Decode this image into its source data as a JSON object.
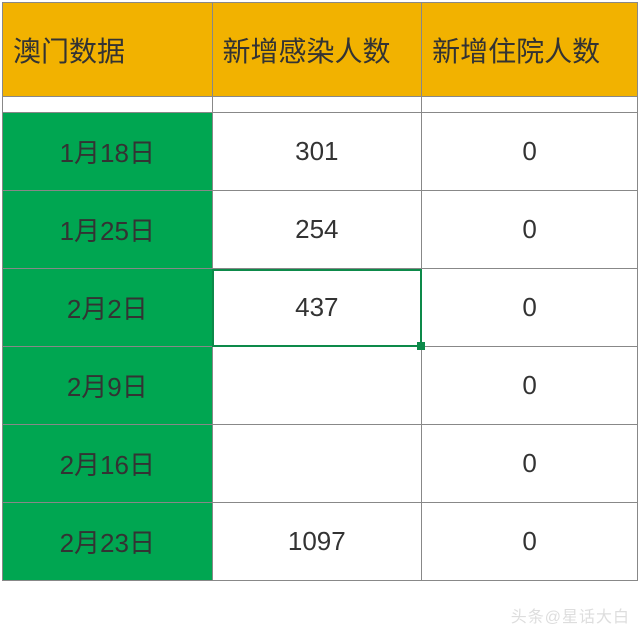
{
  "table": {
    "columns": [
      "澳门数据",
      "新增感染人数",
      "新增住院人数"
    ],
    "header_bg": "#f2b200",
    "date_bg": "#00a651",
    "border_color": "#888888",
    "selected_border": "#0d8a4a",
    "font_size_header": 28,
    "font_size_cell": 26,
    "rows": [
      {
        "date": "1月18日",
        "infections": "301",
        "hospitalized": "0"
      },
      {
        "date": "1月25日",
        "infections": "254",
        "hospitalized": "0"
      },
      {
        "date": "2月2日",
        "infections": "437",
        "hospitalized": "0",
        "selected": true
      },
      {
        "date": "2月9日",
        "infections": "",
        "hospitalized": "0"
      },
      {
        "date": "2月16日",
        "infections": "",
        "hospitalized": "0"
      },
      {
        "date": "2月23日",
        "infections": "1097",
        "hospitalized": "0"
      }
    ]
  },
  "watermark": "头条@星话大白"
}
